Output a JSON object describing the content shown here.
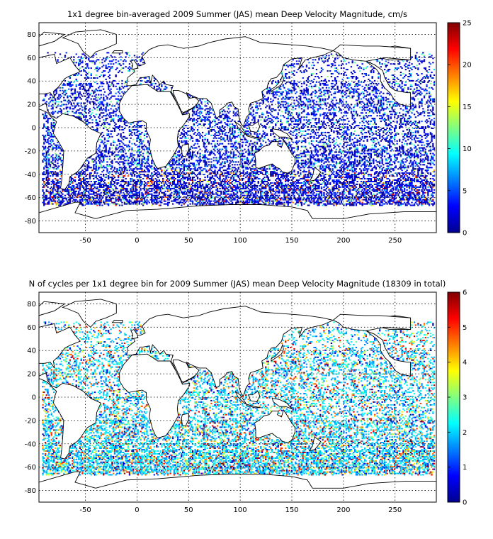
{
  "panels": [
    {
      "id": "velocity",
      "title": "1x1 degree bin-averaged 2009 Summer (JAS) mean Deep Velocity Magnitude, cm/s",
      "x_ticks": [
        "-50",
        "0",
        "50",
        "100",
        "150",
        "200",
        "250"
      ],
      "y_ticks": [
        "80",
        "60",
        "40",
        "20",
        "0",
        "-20",
        "-40",
        "-60",
        "-80"
      ],
      "colorbar_ticks": [
        "0",
        "5",
        "10",
        "15",
        "20",
        "25"
      ],
      "colorbar_range": [
        0,
        25
      ]
    },
    {
      "id": "cycles",
      "title": "N of cycles per 1x1 degree bin for 2009 Summer (JAS) mean Deep Velocity Magnitude (18309 in total)",
      "x_ticks": [
        "-50",
        "0",
        "50",
        "100",
        "150",
        "200",
        "250"
      ],
      "y_ticks": [
        "80",
        "60",
        "40",
        "20",
        "0",
        "-20",
        "-40",
        "-60",
        "-80"
      ],
      "colorbar_ticks": [
        "0",
        "1",
        "2",
        "3",
        "4",
        "5",
        "6"
      ],
      "colorbar_range": [
        0,
        6
      ]
    }
  ],
  "map": {
    "x_range": [
      -95,
      290
    ],
    "y_range": [
      -90,
      90
    ],
    "x_tick_values": [
      -50,
      0,
      50,
      100,
      150,
      200,
      250
    ],
    "y_tick_values": [
      80,
      60,
      40,
      20,
      0,
      -20,
      -40,
      -60,
      -80
    ],
    "grid": true,
    "colormap": "jet"
  }
}
